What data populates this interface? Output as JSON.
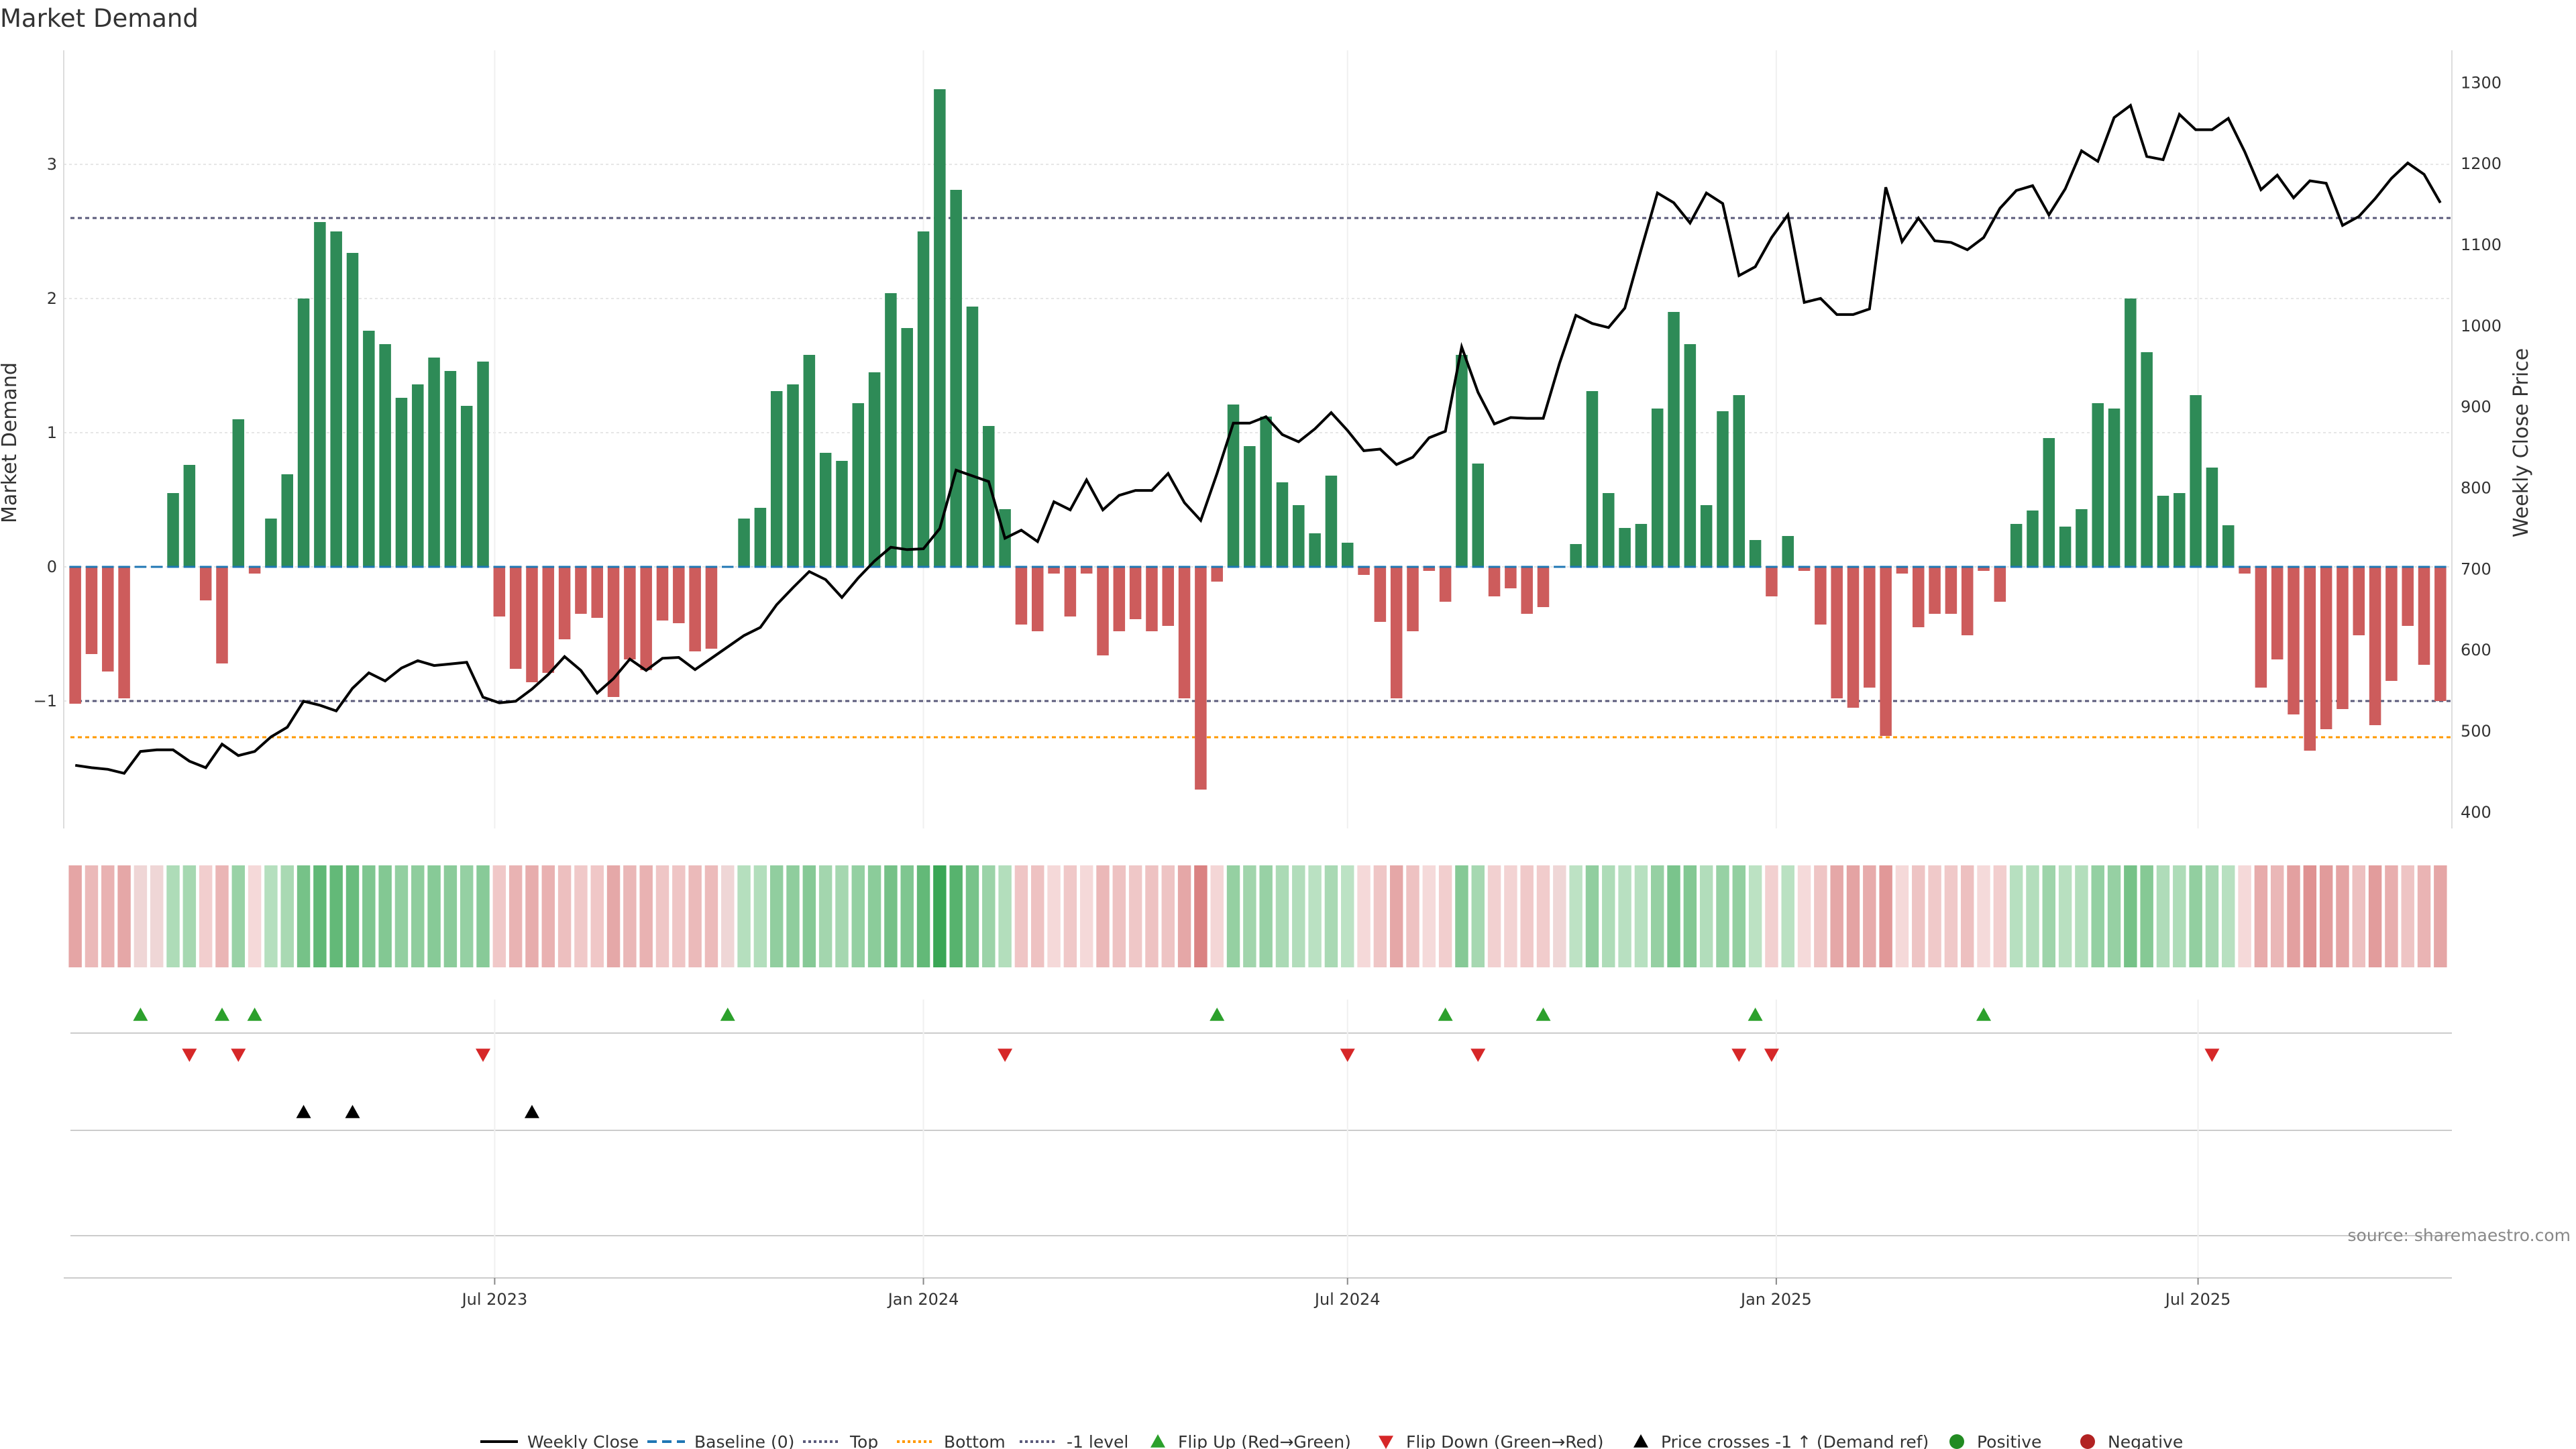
{
  "chart_data": {
    "type": "bar",
    "title": "Market Demand",
    "ylabel_left": "Market Demand",
    "ylabel_right": "Weekly Close Price",
    "source": "source: sharemaestro.com",
    "x_start_week": "2023-01-02",
    "x_ticks": [
      "Jul 2023",
      "Jan 2024",
      "Jul 2024",
      "Jan 2025",
      "Jul 2025"
    ],
    "x_tick_dates": [
      "2023-07-01",
      "2024-01-01",
      "2024-07-01",
      "2025-01-01",
      "2025-07-01"
    ],
    "ylim_left": [
      -1.95,
      3.85
    ],
    "yticks_left": [
      "−1",
      "0",
      "1",
      "2",
      "3"
    ],
    "yticks_left_values": [
      -1,
      0,
      1,
      2,
      3
    ],
    "ylim_right": [
      380,
      1340
    ],
    "yticks_right": [
      "400",
      "500",
      "600",
      "700",
      "800",
      "900",
      "1000",
      "1100",
      "1200",
      "1300"
    ],
    "yticks_right_values": [
      400,
      500,
      600,
      700,
      800,
      900,
      1000,
      1100,
      1200,
      1300
    ],
    "reference_lines": {
      "top": 2.6,
      "bottom": -1.27,
      "minus_one": -1,
      "baseline": 0
    },
    "colors": {
      "positive": "#2e8b57",
      "negative": "#cd5c5c",
      "price_line": "#000000",
      "flip_up": "#2ca02c",
      "flip_down": "#d62728",
      "cross": "#000000",
      "positive_dot": "#228b22",
      "negative_dot": "#b22222",
      "top_line": "#5a5a7a",
      "bottom_line": "#ff9900",
      "baseline": "#1f77b4"
    },
    "demand": [
      -1.02,
      -0.65,
      -0.78,
      -0.98,
      0,
      0,
      0.55,
      0.76,
      -0.25,
      -0.72,
      1.1,
      -0.05,
      0.36,
      0.69,
      2.0,
      2.57,
      2.5,
      2.34,
      1.76,
      1.66,
      1.26,
      1.36,
      1.56,
      1.46,
      1.2,
      1.53,
      -0.37,
      -0.76,
      -0.86,
      -0.79,
      -0.54,
      -0.35,
      -0.38,
      -0.97,
      -0.69,
      -0.77,
      -0.4,
      -0.42,
      -0.63,
      -0.61,
      0,
      0.36,
      0.44,
      1.31,
      1.36,
      1.58,
      0.85,
      0.79,
      1.22,
      1.45,
      2.04,
      1.78,
      2.5,
      3.56,
      2.81,
      1.94,
      1.05,
      0.43,
      -0.43,
      -0.48,
      -0.05,
      -0.37,
      -0.05,
      -0.66,
      -0.48,
      -0.39,
      -0.48,
      -0.44,
      -0.98,
      -1.66,
      -0.11,
      1.21,
      0.9,
      1.12,
      0.63,
      0.46,
      0.25,
      0.68,
      0.18,
      -0.06,
      -0.41,
      -0.98,
      -0.48,
      -0.03,
      -0.26,
      1.58,
      0.77,
      -0.22,
      -0.16,
      -0.35,
      -0.3,
      0,
      0.17,
      1.31,
      0.55,
      0.29,
      0.32,
      1.18,
      1.9,
      1.66,
      0.46,
      1.16,
      1.28,
      0.2,
      -0.22,
      0.23,
      -0.03,
      -0.43,
      -0.98,
      -1.05,
      -0.9,
      -1.26,
      -0.05,
      -0.45,
      -0.35,
      -0.35,
      -0.51,
      -0.03,
      -0.26,
      0.32,
      0.42,
      0.96,
      0.3,
      0.43,
      1.22,
      1.18,
      2.0,
      1.6,
      0.53,
      0.55,
      1.28,
      0.74,
      0.31,
      -0.05,
      -0.9,
      -0.69,
      -1.1,
      -1.37,
      -1.21,
      -1.06,
      -0.51,
      -1.18,
      -0.85,
      -0.44,
      -0.73,
      -1.0
    ],
    "weekly_close": [
      458,
      455,
      453,
      448,
      475,
      477,
      477,
      463,
      455,
      484,
      470,
      475,
      493,
      505,
      537,
      532,
      525,
      553,
      572,
      562,
      578,
      587,
      581,
      583,
      585,
      542,
      535,
      537,
      552,
      570,
      592,
      575,
      547,
      565,
      589,
      575,
      590,
      591,
      576,
      590,
      604,
      618,
      628,
      656,
      677,
      697,
      687,
      665,
      689,
      710,
      727,
      724,
      725,
      750,
      822,
      815,
      808,
      738,
      748,
      734,
      783,
      773,
      810,
      773,
      791,
      797,
      797,
      818,
      782,
      760,
      818,
      880,
      880,
      888,
      866,
      857,
      873,
      893,
      871,
      846,
      848,
      829,
      838,
      862,
      870,
      974,
      918,
      879,
      887,
      886,
      886,
      954,
      1013,
      1003,
      998,
      1022,
      1094,
      1164,
      1152,
      1127,
      1164,
      1151,
      1062,
      1073,
      1109,
      1137,
      1029,
      1034,
      1014,
      1014,
      1021,
      1171,
      1104,
      1133,
      1105,
      1103,
      1094,
      1109,
      1145,
      1167,
      1173,
      1137,
      1169,
      1216,
      1203,
      1257,
      1272,
      1209,
      1205,
      1261,
      1242,
      1242,
      1256,
      1215,
      1168,
      1186,
      1158,
      1179,
      1176,
      1124,
      1135,
      1157,
      1182,
      1201,
      1187,
      1152
    ],
    "flip_up_weeks": [
      4,
      9,
      11,
      40,
      70,
      84,
      90,
      103,
      117
    ],
    "flip_down_weeks": [
      7,
      10,
      25,
      57,
      78,
      86,
      102,
      104,
      131
    ],
    "price_cross_weeks": [
      14,
      17,
      28
    ],
    "legend": [
      "Weekly Close",
      "Baseline (0)",
      "Top",
      "Bottom",
      "-1 level",
      "Flip Up (Red→Green)",
      "Flip Down (Green→Red)",
      "Price crosses -1 ↑ (Demand ref)",
      "Positive",
      "Negative"
    ]
  }
}
